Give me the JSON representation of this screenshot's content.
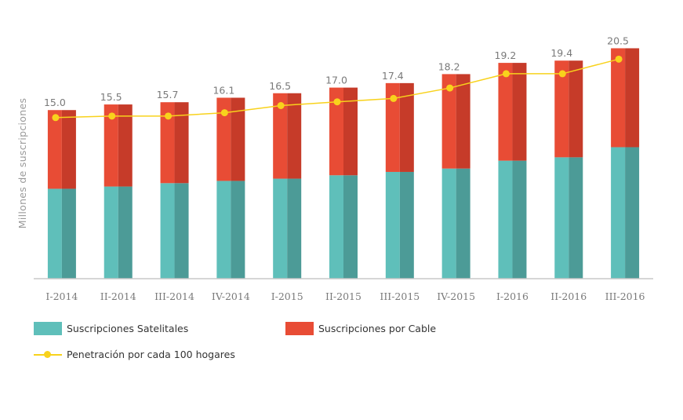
{
  "chart_data": {
    "type": "bar",
    "stacked": true,
    "ylabel": "Millones de suscripciones",
    "categories": [
      "I-2014",
      "II-2014",
      "III-2014",
      "IV-2014",
      "I-2015",
      "II-2015",
      "III-2015",
      "IV-2015",
      "I-2016",
      "II-2016",
      "III-2016"
    ],
    "totals": [
      15.0,
      15.5,
      15.7,
      16.1,
      16.5,
      17.0,
      17.4,
      18.2,
      19.2,
      19.4,
      20.5
    ],
    "total_labels": [
      "15.0",
      "15.5",
      "15.7",
      "16.1",
      "16.5",
      "17.0",
      "17.4",
      "18.2",
      "19.2",
      "19.4",
      "20.5"
    ],
    "series": [
      {
        "name": "Suscripciones Satelitales",
        "color": "#5fbfba",
        "shade": "#4c9b97",
        "values": [
          8.0,
          8.2,
          8.5,
          8.7,
          8.9,
          9.2,
          9.5,
          9.8,
          10.5,
          10.8,
          11.7
        ]
      },
      {
        "name": "Suscripciones por Cable",
        "color": "#e84c35",
        "shade": "#c63b29",
        "values": [
          7.0,
          7.3,
          7.2,
          7.4,
          7.6,
          7.8,
          7.9,
          8.4,
          8.7,
          8.6,
          8.8
        ]
      }
    ],
    "line_series": {
      "name": "Penetración por cada 100 hogares",
      "color": "#f8d21c",
      "values": [
        43.0,
        43.4,
        43.4,
        44.3,
        46.2,
        47.2,
        48.1,
        50.9,
        54.7,
        54.7,
        58.6
      ]
    },
    "ylim": [
      0,
      22
    ],
    "line_ylim": [
      0,
      66
    ],
    "grid": false,
    "legend_position": "bottom-left"
  },
  "legend": {
    "satelital": "Suscripciones Satelitales",
    "cable": "Suscripciones por Cable",
    "penetracion": "Penetración por cada 100 hogares"
  }
}
